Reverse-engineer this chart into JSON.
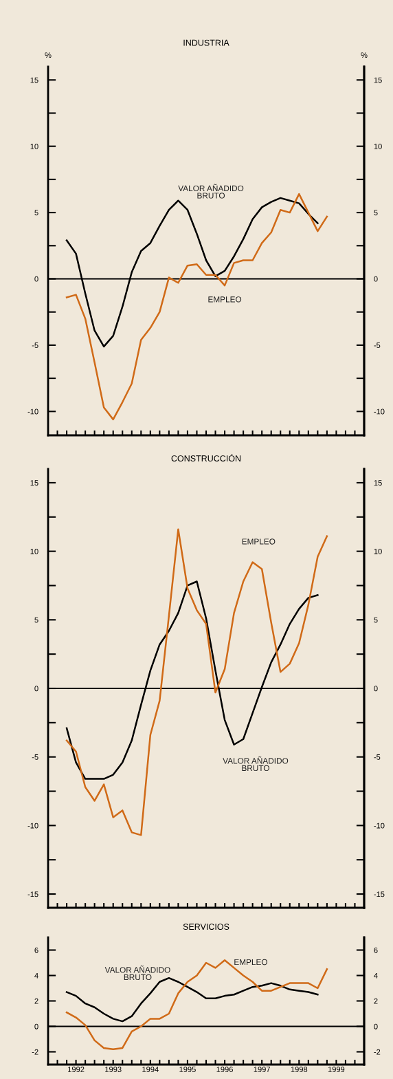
{
  "chart_data": [
    {
      "type": "line",
      "title": "INDUSTRIA",
      "ylabel": "%",
      "y2label": "%",
      "tick_labels": "y",
      "grid": false,
      "legend": false,
      "marker": "none",
      "line_style": "solid",
      "xlim": [
        1991.75,
        2000.25
      ],
      "xticks": [
        1992,
        1992.25,
        1992.5,
        1992.75,
        1993,
        1993.25,
        1993.5,
        1993.75,
        1994,
        1994.25,
        1994.5,
        1994.75,
        1995,
        1995.25,
        1995.5,
        1995.75,
        1996,
        1996.25,
        1996.5,
        1996.75,
        1997,
        1997.25,
        1997.5,
        1997.75,
        1998,
        1998.25,
        1998.5,
        1998.75,
        1999,
        1999.25,
        1999.5,
        1999.75,
        2000
      ],
      "ylim": [
        -11.8,
        16
      ],
      "yticks": [
        -10,
        {
          "value": -7.5,
          "label": null
        },
        -5,
        {
          "value": -2.5,
          "label": null
        },
        0,
        {
          "value": 2.5,
          "label": null
        },
        5,
        {
          "value": 7.5,
          "label": null
        },
        10,
        {
          "value": 12.5,
          "label": null
        },
        15
      ],
      "y2lim": [
        -11.8,
        16
      ],
      "y2ticks": [
        -10,
        {
          "value": -7.5,
          "label": null
        },
        -5,
        {
          "value": -2.5,
          "label": null
        },
        0,
        {
          "value": 2.5,
          "label": null
        },
        5,
        {
          "value": 7.5,
          "label": null
        },
        10,
        {
          "value": 12.5,
          "label": null
        },
        15
      ],
      "ref_lines": [
        {
          "axis": "y",
          "value": 0,
          "color": "#000000",
          "line_style": "solid"
        }
      ],
      "series": [
        {
          "name": "VALOR AÑADIDO\nBRUTO",
          "color": "#000000",
          "x": [
            1992.25,
            1992.5,
            1992.75,
            1993,
            1993.25,
            1993.5,
            1993.75,
            1994,
            1994.25,
            1994.5,
            1994.75,
            1995,
            1995.25,
            1995.5,
            1995.75,
            1996,
            1996.25,
            1996.5,
            1996.75,
            1997,
            1997.25,
            1997.5,
            1997.75,
            1998,
            1998.25,
            1998.5,
            1998.75,
            1999
          ],
          "values": [
            2.9,
            1.9,
            -1.1,
            -3.9,
            -5.1,
            -4.3,
            -2.1,
            0.5,
            2.1,
            2.7,
            4.0,
            5.2,
            5.9,
            5.2,
            3.4,
            1.4,
            0.2,
            0.6,
            1.7,
            3.0,
            4.5,
            5.4,
            5.8,
            6.1,
            5.9,
            5.7,
            4.9,
            4.2
          ]
        },
        {
          "name": "EMPLEO",
          "color": "#d06a17",
          "x": [
            1992.25,
            1992.5,
            1992.75,
            1993,
            1993.25,
            1993.5,
            1993.75,
            1994,
            1994.25,
            1994.5,
            1994.75,
            1995,
            1995.25,
            1995.5,
            1995.75,
            1996,
            1996.25,
            1996.5,
            1996.75,
            1997,
            1997.25,
            1997.5,
            1997.75,
            1998,
            1998.25,
            1998.5,
            1998.75,
            1999,
            1999.25
          ],
          "values": [
            -1.4,
            -1.2,
            -3.0,
            -6.3,
            -9.7,
            -10.6,
            -9.3,
            -7.9,
            -4.6,
            -3.7,
            -2.5,
            0.1,
            -0.3,
            1.0,
            1.1,
            0.3,
            0.3,
            -0.5,
            1.2,
            1.4,
            1.4,
            2.7,
            3.5,
            5.2,
            5.0,
            6.4,
            5.0,
            3.6,
            4.7
          ]
        }
      ]
    },
    {
      "type": "line",
      "title": "CONSTRUCCIÓN",
      "tick_labels": "y",
      "grid": false,
      "legend": false,
      "marker": "none",
      "line_style": "solid",
      "xlim": [
        1991.75,
        2000.25
      ],
      "xticks": [
        1992,
        1992.25,
        1992.5,
        1992.75,
        1993,
        1993.25,
        1993.5,
        1993.75,
        1994,
        1994.25,
        1994.5,
        1994.75,
        1995,
        1995.25,
        1995.5,
        1995.75,
        1996,
        1996.25,
        1996.5,
        1996.75,
        1997,
        1997.25,
        1997.5,
        1997.75,
        1998,
        1998.25,
        1998.5,
        1998.75,
        1999,
        1999.25,
        1999.5,
        1999.75,
        2000
      ],
      "ylim": [
        -16,
        16
      ],
      "yticks": [
        -15,
        {
          "value": -12.5,
          "label": null
        },
        -10,
        {
          "value": -7.5,
          "label": null
        },
        -5,
        {
          "value": -2.5,
          "label": null
        },
        0,
        {
          "value": 2.5,
          "label": null
        },
        5,
        {
          "value": 7.5,
          "label": null
        },
        10,
        {
          "value": 12.5,
          "label": null
        },
        15
      ],
      "y2lim": [
        -16,
        16
      ],
      "y2ticks": [
        -15,
        {
          "value": -12.5,
          "label": null
        },
        -10,
        {
          "value": -7.5,
          "label": null
        },
        -5,
        {
          "value": -2.5,
          "label": null
        },
        0,
        {
          "value": 2.5,
          "label": null
        },
        5,
        {
          "value": 7.5,
          "label": null
        },
        10,
        {
          "value": 12.5,
          "label": null
        },
        15
      ],
      "ref_lines": [
        {
          "axis": "y",
          "value": 0,
          "color": "#000000",
          "line_style": "solid"
        }
      ],
      "series": [
        {
          "name": "VALOR AÑADIDO\nBRUTO",
          "color": "#000000",
          "x": [
            1992.25,
            1992.5,
            1992.75,
            1993,
            1993.25,
            1993.5,
            1993.75,
            1994,
            1994.25,
            1994.5,
            1994.75,
            1995,
            1995.25,
            1995.5,
            1995.75,
            1996,
            1996.25,
            1996.5,
            1996.75,
            1997,
            1997.25,
            1997.5,
            1997.75,
            1998,
            1998.25,
            1998.5,
            1998.75,
            1999
          ],
          "values": [
            -2.9,
            -5.4,
            -6.6,
            -6.6,
            -6.6,
            -6.3,
            -5.4,
            -3.8,
            -1.2,
            1.3,
            3.2,
            4.2,
            5.5,
            7.5,
            7.8,
            5.1,
            1.3,
            -2.3,
            -4.1,
            -3.7,
            -1.8,
            0.1,
            1.9,
            3.2,
            4.7,
            5.8,
            6.6,
            6.8
          ]
        },
        {
          "name": "EMPLEO",
          "color": "#d06a17",
          "x": [
            1992.25,
            1992.5,
            1992.75,
            1993,
            1993.25,
            1993.5,
            1993.75,
            1994,
            1994.25,
            1994.5,
            1994.75,
            1995,
            1995.25,
            1995.5,
            1995.75,
            1996,
            1996.25,
            1996.5,
            1996.75,
            1997,
            1997.25,
            1997.5,
            1997.75,
            1998,
            1998.25,
            1998.5,
            1998.75,
            1999,
            1999.25
          ],
          "values": [
            -3.8,
            -4.6,
            -7.2,
            -8.2,
            -7.0,
            -9.4,
            -8.9,
            -10.5,
            -10.7,
            -3.4,
            -0.9,
            5.3,
            11.6,
            7.3,
            5.7,
            4.7,
            -0.3,
            1.4,
            5.5,
            7.8,
            9.2,
            8.7,
            4.8,
            1.2,
            1.8,
            3.3,
            6.1,
            9.6,
            11.1
          ]
        }
      ]
    },
    {
      "type": "line",
      "title": "SERVICIOS",
      "grid": false,
      "legend": false,
      "marker": "none",
      "line_style": "solid",
      "xlim": [
        1991.75,
        2000.25
      ],
      "xticks": [
        {
          "value": 1992,
          "label": null
        },
        {
          "value": 1992.25,
          "label": null
        },
        {
          "value": 1992.5,
          "label": "1992"
        },
        {
          "value": 1992.75,
          "label": null
        },
        {
          "value": 1993,
          "label": null
        },
        {
          "value": 1993.25,
          "label": null
        },
        {
          "value": 1993.5,
          "label": "1993"
        },
        {
          "value": 1993.75,
          "label": null
        },
        {
          "value": 1994,
          "label": null
        },
        {
          "value": 1994.25,
          "label": null
        },
        {
          "value": 1994.5,
          "label": "1994"
        },
        {
          "value": 1994.75,
          "label": null
        },
        {
          "value": 1995,
          "label": null
        },
        {
          "value": 1995.25,
          "label": null
        },
        {
          "value": 1995.5,
          "label": "1995"
        },
        {
          "value": 1995.75,
          "label": null
        },
        {
          "value": 1996,
          "label": null
        },
        {
          "value": 1996.25,
          "label": null
        },
        {
          "value": 1996.5,
          "label": "1996"
        },
        {
          "value": 1996.75,
          "label": null
        },
        {
          "value": 1997,
          "label": null
        },
        {
          "value": 1997.25,
          "label": null
        },
        {
          "value": 1997.5,
          "label": "1997"
        },
        {
          "value": 1997.75,
          "label": null
        },
        {
          "value": 1998,
          "label": null
        },
        {
          "value": 1998.25,
          "label": null
        },
        {
          "value": 1998.5,
          "label": "1998"
        },
        {
          "value": 1998.75,
          "label": null
        },
        {
          "value": 1999,
          "label": null
        },
        {
          "value": 1999.25,
          "label": null
        },
        {
          "value": 1999.5,
          "label": "1999"
        },
        {
          "value": 1999.75,
          "label": null
        },
        {
          "value": 2000,
          "label": null
        }
      ],
      "ylim": [
        -3,
        7
      ],
      "yticks": [
        -2,
        0,
        2,
        4,
        6
      ],
      "y2lim": [
        -3,
        7
      ],
      "y2ticks": [
        -2,
        0,
        2,
        4,
        6
      ],
      "ref_lines": [
        {
          "axis": "y",
          "value": 0,
          "color": "#000000",
          "line_style": "solid"
        }
      ],
      "series": [
        {
          "name": "VALOR AÑADIDO\nBRUTO",
          "color": "#000000",
          "x": [
            1992.25,
            1992.5,
            1992.75,
            1993,
            1993.25,
            1993.5,
            1993.75,
            1994,
            1994.25,
            1994.5,
            1994.75,
            1995,
            1995.25,
            1995.5,
            1995.75,
            1996,
            1996.25,
            1996.5,
            1996.75,
            1997,
            1997.25,
            1997.5,
            1997.75,
            1998,
            1998.25,
            1998.5,
            1998.75,
            1999
          ],
          "values": [
            2.7,
            2.4,
            1.8,
            1.5,
            1.0,
            0.6,
            0.4,
            0.8,
            1.8,
            2.6,
            3.5,
            3.8,
            3.5,
            3.1,
            2.7,
            2.2,
            2.2,
            2.4,
            2.5,
            2.8,
            3.1,
            3.2,
            3.4,
            3.2,
            2.9,
            2.8,
            2.7,
            2.5
          ]
        },
        {
          "name": "EMPLEO",
          "color": "#d06a17",
          "x": [
            1992.25,
            1992.5,
            1992.75,
            1993,
            1993.25,
            1993.5,
            1993.75,
            1994,
            1994.25,
            1994.5,
            1994.75,
            1995,
            1995.25,
            1995.5,
            1995.75,
            1996,
            1996.25,
            1996.5,
            1996.75,
            1997,
            1997.25,
            1997.5,
            1997.75,
            1998,
            1998.25,
            1998.5,
            1998.75,
            1999,
            1999.25
          ],
          "values": [
            1.1,
            0.7,
            0.1,
            -1.1,
            -1.7,
            -1.8,
            -1.7,
            -0.4,
            0.0,
            0.6,
            0.6,
            1.0,
            2.6,
            3.5,
            4.0,
            5.0,
            4.6,
            5.2,
            4.6,
            4.0,
            3.5,
            2.8,
            2.8,
            3.1,
            3.4,
            3.4,
            3.4,
            3.0,
            4.5
          ]
        }
      ]
    }
  ]
}
